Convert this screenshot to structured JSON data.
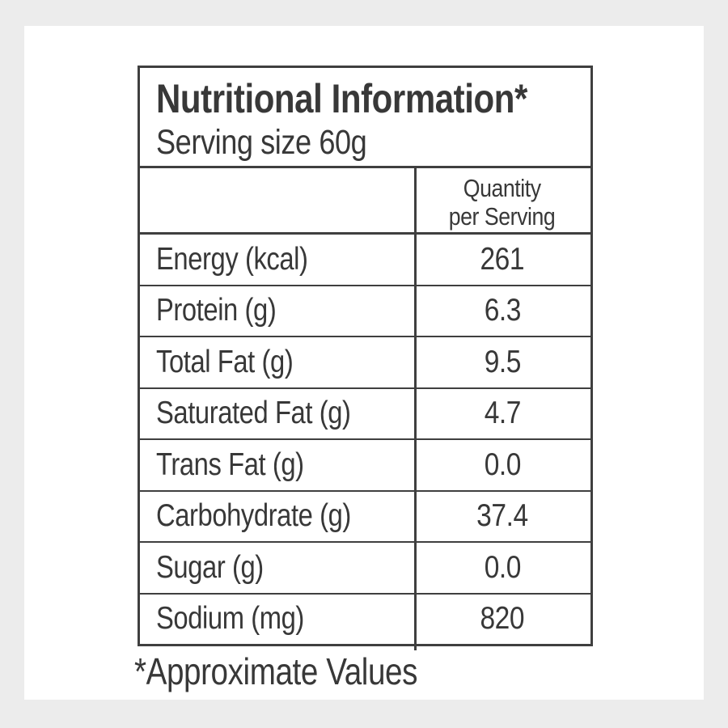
{
  "colors": {
    "bg": "#ececec",
    "card": "#ffffff",
    "ink": "#383838",
    "line": "#3f3f3f"
  },
  "table": {
    "title": "Nutritional Information*",
    "serving_size": "Serving size 60g",
    "header": {
      "quantity_line1": "Quantity",
      "quantity_line2": "per Serving"
    },
    "rows": [
      {
        "label": "Energy (kcal)",
        "value": "261"
      },
      {
        "label": "Protein (g)",
        "value": "6.3"
      },
      {
        "label": "Total Fat (g)",
        "value": "9.5"
      },
      {
        "label": "Saturated Fat (g)",
        "value": "4.7"
      },
      {
        "label": "Trans Fat (g)",
        "value": "0.0"
      },
      {
        "label": "Carbohydrate (g)",
        "value": "37.4"
      },
      {
        "label": "Sugar (g)",
        "value": "0.0"
      },
      {
        "label": "Sodium (mg)",
        "value": "820"
      }
    ]
  },
  "footnote": "*Approximate Values"
}
